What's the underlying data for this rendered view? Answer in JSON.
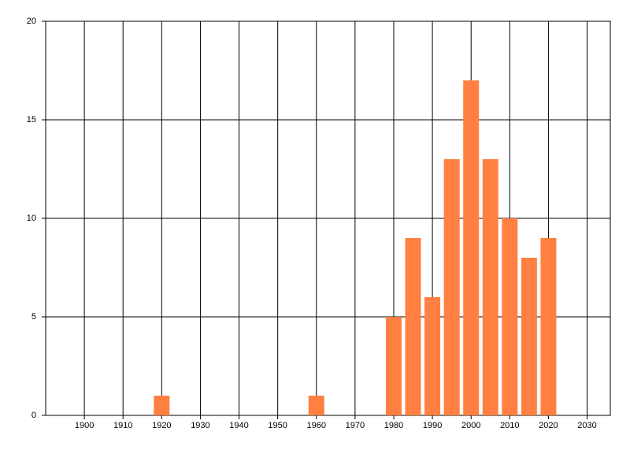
{
  "chart_data": {
    "type": "bar",
    "x": [
      1920,
      1960,
      1980,
      1985,
      1990,
      1995,
      2000,
      2005,
      2010,
      2015,
      2020
    ],
    "values": [
      1,
      1,
      5,
      9,
      6,
      13,
      17,
      13,
      10,
      8,
      9
    ],
    "color": "#ff8040",
    "xlim": [
      1890,
      2036
    ],
    "xticks": [
      1900,
      1910,
      1920,
      1930,
      1940,
      1950,
      1960,
      1970,
      1980,
      1990,
      2000,
      2010,
      2020,
      2030
    ],
    "ylim": [
      0,
      20
    ],
    "yticks": [
      0,
      5,
      10,
      15,
      20
    ],
    "grid": true
  }
}
